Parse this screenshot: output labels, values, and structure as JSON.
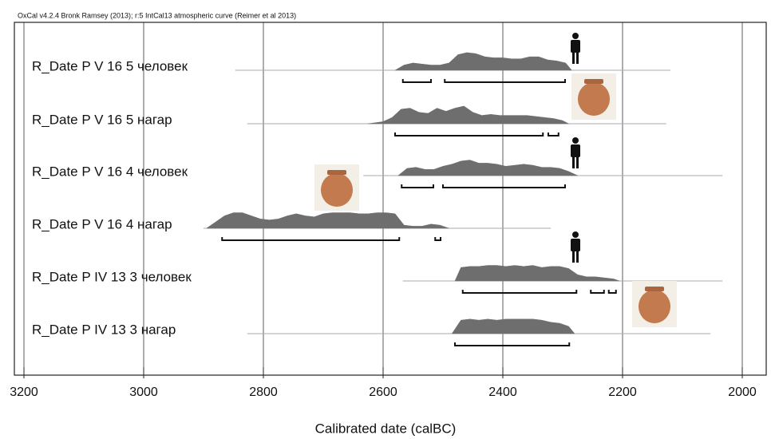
{
  "chart_data": {
    "type": "oxcal",
    "title": "OxCal v4.2.4 Bronk Ramsey (2013); r:5 IntCal13 atmospheric curve (Reimer et al 2013)",
    "x_label": "Calibrated date (calBC)",
    "xlim": [
      3200,
      1960
    ],
    "xticks": [
      3200,
      3000,
      2800,
      2600,
      2400,
      2200,
      2000
    ],
    "grid": true,
    "color": "#6e6e6e",
    "rows": [
      {
        "name": "R_Date P V 16 5 человек",
        "span": [
          2847,
          2120
        ],
        "years": [
          2580,
          2565,
          2550,
          2535,
          2520,
          2505,
          2490,
          2475,
          2460,
          2445,
          2430,
          2415,
          2400,
          2385,
          2370,
          2355,
          2340,
          2325,
          2310,
          2295,
          2285
        ],
        "density": [
          0,
          0.25,
          0.35,
          0.3,
          0.25,
          0.25,
          0.35,
          0.75,
          0.85,
          0.8,
          0.65,
          0.6,
          0.6,
          0.55,
          0.55,
          0.65,
          0.65,
          0.5,
          0.45,
          0.35,
          0
        ],
        "ranges": [
          [
            2567,
            2520
          ],
          [
            2497,
            2296
          ]
        ]
      },
      {
        "name": "R_Date P V 16 5 нагар",
        "span": [
          2827,
          2127
        ],
        "years": [
          2625,
          2600,
          2585,
          2570,
          2555,
          2540,
          2525,
          2510,
          2495,
          2480,
          2465,
          2450,
          2435,
          2420,
          2405,
          2390,
          2375,
          2360,
          2345,
          2330,
          2315,
          2300,
          2290
        ],
        "density": [
          0,
          0.1,
          0.3,
          0.7,
          0.75,
          0.55,
          0.5,
          0.75,
          0.6,
          0.75,
          0.85,
          0.55,
          0.4,
          0.45,
          0.4,
          0.4,
          0.4,
          0.4,
          0.35,
          0.3,
          0.25,
          0.15,
          0
        ],
        "ranges": [
          [
            2580,
            2333
          ],
          [
            2324,
            2307
          ]
        ]
      },
      {
        "name": "R_Date P V 16 4 человек",
        "span": [
          2633,
          2033
        ],
        "years": [
          2575,
          2560,
          2545,
          2530,
          2515,
          2500,
          2485,
          2470,
          2455,
          2440,
          2425,
          2410,
          2395,
          2380,
          2365,
          2350,
          2335,
          2320,
          2305,
          2290,
          2275
        ],
        "density": [
          0,
          0.35,
          0.4,
          0.3,
          0.3,
          0.45,
          0.55,
          0.7,
          0.75,
          0.6,
          0.6,
          0.55,
          0.45,
          0.5,
          0.55,
          0.5,
          0.4,
          0.4,
          0.35,
          0.2,
          0
        ],
        "ranges": [
          [
            2569,
            2516
          ],
          [
            2500,
            2296
          ]
        ]
      },
      {
        "name": "R_Date P V 16 4 нагар",
        "span": [
          2900,
          2320
        ],
        "years": [
          2895,
          2880,
          2865,
          2850,
          2835,
          2820,
          2805,
          2790,
          2775,
          2760,
          2745,
          2730,
          2715,
          2700,
          2685,
          2670,
          2655,
          2640,
          2625,
          2610,
          2595,
          2580,
          2565,
          2550,
          2535,
          2520,
          2505,
          2490
        ],
        "density": [
          0,
          0.3,
          0.6,
          0.75,
          0.75,
          0.6,
          0.45,
          0.4,
          0.45,
          0.6,
          0.7,
          0.6,
          0.55,
          0.7,
          0.75,
          0.75,
          0.75,
          0.7,
          0.7,
          0.75,
          0.75,
          0.7,
          0.15,
          0.1,
          0.1,
          0.2,
          0.15,
          0
        ],
        "ranges": [
          [
            2869,
            2573
          ],
          [
            2513,
            2504
          ]
        ]
      },
      {
        "name": "R_Date P IV 13 3  человек",
        "span": [
          2567,
          2033
        ],
        "years": [
          2480,
          2470,
          2455,
          2440,
          2425,
          2410,
          2395,
          2380,
          2365,
          2350,
          2335,
          2320,
          2305,
          2290,
          2275,
          2260,
          2245,
          2230,
          2215,
          2205
        ],
        "density": [
          0,
          0.65,
          0.7,
          0.7,
          0.75,
          0.75,
          0.7,
          0.75,
          0.7,
          0.75,
          0.65,
          0.7,
          0.7,
          0.6,
          0.3,
          0.2,
          0.2,
          0.15,
          0.1,
          0
        ],
        "ranges": [
          [
            2467,
            2277
          ],
          [
            2253,
            2231
          ],
          [
            2223,
            2211
          ]
        ]
      },
      {
        "name": "R_Date P IV 13 3 нагар",
        "span": [
          2827,
          2053
        ],
        "years": [
          2485,
          2470,
          2455,
          2440,
          2425,
          2410,
          2395,
          2380,
          2365,
          2350,
          2335,
          2320,
          2305,
          2290,
          2280
        ],
        "density": [
          0,
          0.65,
          0.7,
          0.65,
          0.7,
          0.65,
          0.7,
          0.7,
          0.7,
          0.7,
          0.65,
          0.55,
          0.5,
          0.35,
          0
        ],
        "ranges": [
          [
            2480,
            2289
          ]
        ]
      }
    ]
  }
}
